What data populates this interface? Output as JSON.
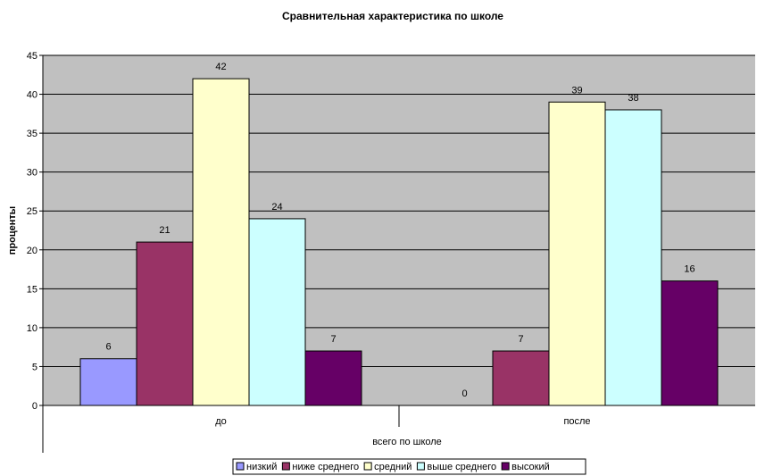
{
  "chart_data": {
    "type": "bar",
    "title": "Сравнительная характеристика по школе",
    "ylabel": "проценты",
    "xlabel": "всего по школе",
    "categories": [
      "до",
      "после"
    ],
    "series": [
      {
        "name": "низкий",
        "values": [
          6,
          0
        ],
        "color": "#9999ff"
      },
      {
        "name": "ниже среднего",
        "values": [
          21,
          7
        ],
        "color": "#993366"
      },
      {
        "name": "средний",
        "values": [
          42,
          39
        ],
        "color": "#ffffcc"
      },
      {
        "name": "выше среднего",
        "values": [
          24,
          38
        ],
        "color": "#ccffff"
      },
      {
        "name": "высокий",
        "values": [
          7,
          16
        ],
        "color": "#660066"
      }
    ],
    "ylim": [
      0,
      45
    ],
    "yticks": [
      0,
      5,
      10,
      15,
      20,
      25,
      30,
      35,
      40,
      45
    ],
    "grid": true,
    "plot_background": "#c0c0c0",
    "legend_position": "bottom"
  }
}
